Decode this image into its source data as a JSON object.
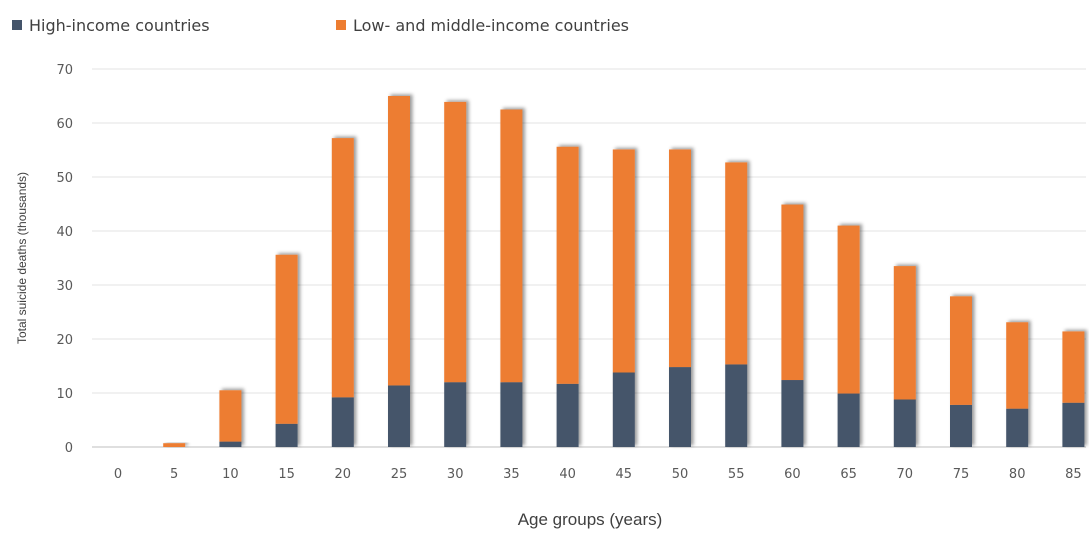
{
  "chart_data": {
    "type": "bar",
    "stacked": true,
    "title": "",
    "xlabel": "Age groups (years)",
    "ylabel": "Total suicide deaths (thousands)",
    "ylim": [
      0,
      70
    ],
    "yticks": [
      0,
      10,
      20,
      30,
      40,
      50,
      60,
      70
    ],
    "grid": true,
    "legend_position": "top-left",
    "categories": [
      "0",
      "5",
      "10",
      "15",
      "20",
      "25",
      "30",
      "35",
      "40",
      "45",
      "50",
      "55",
      "60",
      "65",
      "70",
      "75",
      "80",
      "85"
    ],
    "series": [
      {
        "name": "High-income countries",
        "color": "#44546a",
        "values": [
          0,
          0,
          1,
          4.3,
          9.2,
          11.4,
          12,
          12,
          11.7,
          13.8,
          14.8,
          15.3,
          12.4,
          9.9,
          8.8,
          7.8,
          7.1,
          8.2
        ]
      },
      {
        "name": "Low- and middle-income countries",
        "color": "#ed7d31",
        "values": [
          0,
          0.7,
          9.5,
          31.3,
          48,
          53.6,
          51.9,
          50.5,
          43.9,
          41.3,
          40.3,
          37.4,
          32.5,
          31.1,
          24.7,
          20.1,
          16,
          13.2
        ]
      }
    ]
  }
}
